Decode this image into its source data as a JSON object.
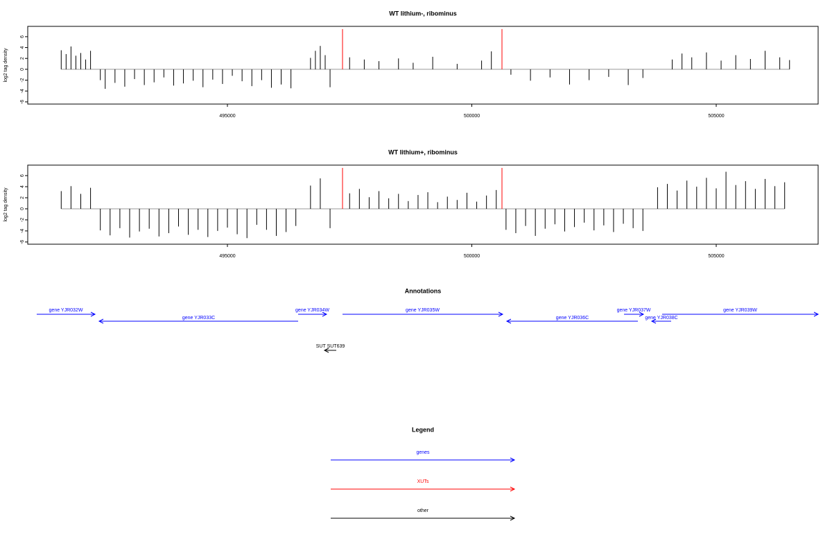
{
  "chart_data": [
    {
      "type": "bar",
      "title": "WT lithium-, ribominus",
      "y_label": "log2 tag density",
      "xlim": [
        490915,
        507085
      ],
      "ylim": [
        -6.4,
        7.9
      ],
      "xticks": [
        495000,
        500000,
        505000
      ],
      "yticks": [
        -6,
        -4,
        -2,
        0,
        2,
        4,
        6
      ],
      "color": "#000000",
      "x": [
        491600,
        491700,
        491800,
        491900,
        492000,
        492100,
        492200,
        492400,
        492500,
        492700,
        492900,
        493100,
        493300,
        493500,
        493700,
        493900,
        494100,
        494300,
        494500,
        494700,
        494900,
        495100,
        495300,
        495500,
        495700,
        495900,
        496100,
        496300,
        496700,
        496800,
        496900,
        497000,
        497100,
        497500,
        497800,
        498100,
        498500,
        498800,
        499200,
        499700,
        500200,
        500400,
        500800,
        501200,
        501600,
        502000,
        502400,
        502800,
        503200,
        503500,
        504100,
        504300,
        504500,
        504800,
        505100,
        505400,
        505700,
        506000,
        506300,
        506500
      ],
      "values": [
        3.5,
        2.8,
        4.2,
        2.5,
        3.0,
        1.8,
        3.4,
        -2.0,
        -3.6,
        -2.5,
        -3.2,
        -1.8,
        -2.9,
        -2.4,
        -1.5,
        -3.0,
        -2.6,
        -2.1,
        -3.3,
        -1.9,
        -2.7,
        -1.2,
        -2.2,
        -3.1,
        -2.0,
        -3.4,
        -2.8,
        -3.5,
        2.1,
        3.4,
        4.3,
        2.6,
        -3.3,
        2.2,
        1.8,
        1.5,
        2.0,
        1.2,
        2.3,
        1.0,
        1.6,
        3.3,
        -1.0,
        -2.1,
        -1.5,
        -2.8,
        -2.0,
        -1.4,
        -2.9,
        -1.6,
        1.8,
        2.9,
        2.2,
        3.1,
        1.6,
        2.6,
        1.9,
        3.4,
        2.2,
        1.7
      ],
      "highlights": {
        "x": [
          497355,
          500617
        ],
        "values": [
          7.4,
          7.4
        ],
        "color": "#ff0000"
      }
    },
    {
      "type": "bar",
      "title": "WT lithium+, ribominus",
      "y_label": "log2 tag density",
      "xlim": [
        490915,
        507085
      ],
      "ylim": [
        -6.4,
        7.9
      ],
      "xticks": [
        495000,
        500000,
        505000
      ],
      "yticks": [
        -6,
        -4,
        -2,
        0,
        2,
        4,
        6
      ],
      "color": "#000000",
      "x": [
        491600,
        491800,
        492000,
        492200,
        492400,
        492600,
        492800,
        493000,
        493200,
        493400,
        493600,
        493800,
        494000,
        494200,
        494400,
        494600,
        494800,
        495000,
        495200,
        495400,
        495600,
        495800,
        496000,
        496200,
        496400,
        496700,
        496900,
        497100,
        497500,
        497700,
        497900,
        498100,
        498300,
        498500,
        498700,
        498900,
        499100,
        499300,
        499500,
        499700,
        499900,
        500100,
        500300,
        500500,
        500700,
        500900,
        501100,
        501300,
        501500,
        501700,
        501900,
        502100,
        502300,
        502500,
        502700,
        502900,
        503100,
        503300,
        503500,
        503800,
        504000,
        504200,
        504400,
        504600,
        504800,
        505000,
        505200,
        505400,
        505600,
        505800,
        506000,
        506200,
        506400
      ],
      "values": [
        3.2,
        4.1,
        2.7,
        3.8,
        -3.9,
        -4.8,
        -3.5,
        -5.2,
        -4.1,
        -3.6,
        -5.0,
        -4.4,
        -3.2,
        -4.7,
        -3.8,
        -5.1,
        -4.0,
        -3.4,
        -4.6,
        -5.3,
        -2.9,
        -3.8,
        -4.9,
        -4.2,
        -3.1,
        4.2,
        5.5,
        -3.5,
        2.8,
        3.6,
        2.1,
        3.2,
        1.9,
        2.7,
        1.4,
        2.5,
        3.0,
        1.2,
        2.2,
        1.6,
        2.9,
        1.3,
        2.4,
        3.4,
        -3.8,
        -4.4,
        -3.1,
        -4.9,
        -3.6,
        -2.8,
        -4.1,
        -3.3,
        -2.5,
        -3.9,
        -3.0,
        -4.2,
        -2.7,
        -3.5,
        -4.0,
        3.9,
        4.5,
        3.3,
        5.1,
        4.0,
        5.6,
        3.7,
        6.7,
        4.3,
        5.0,
        3.6,
        5.4,
        4.1,
        4.8
      ],
      "highlights": {
        "x": [
          497355,
          500617
        ],
        "values": [
          7.4,
          7.4
        ],
        "color": "#ff0000"
      }
    }
  ],
  "annotations": {
    "title": "Annotations",
    "features": [
      {
        "label": "gene YJR032W",
        "start": 491099,
        "end": 492291,
        "strand": "+",
        "color": "#0000ff"
      },
      {
        "label": "gene YJR033C",
        "start": 492376,
        "end": 496447,
        "strand": "-",
        "color": "#0000ff"
      },
      {
        "label": "gene YJR034W",
        "start": 496447,
        "end": 497028,
        "strand": "+",
        "color": "#0000ff"
      },
      {
        "label": "gene YJR035W",
        "start": 497355,
        "end": 500631,
        "strand": "+",
        "color": "#0000ff"
      },
      {
        "label": "gene YJR036C",
        "start": 500716,
        "end": 503397,
        "strand": "-",
        "color": "#0000ff"
      },
      {
        "label": "gene YJR037W",
        "start": 503114,
        "end": 503511,
        "strand": "+",
        "color": "#0000ff"
      },
      {
        "label": "gene YJR038C",
        "start": 503681,
        "end": 504078,
        "strand": "-",
        "color": "#0000ff"
      },
      {
        "label": "gene YJR039W",
        "start": 503894,
        "end": 507085,
        "strand": "+",
        "color": "#0000ff"
      },
      {
        "label": "SUT SUT639",
        "start": 496986,
        "end": 497227,
        "strand": "-",
        "color": "#000000"
      }
    ]
  },
  "legend": {
    "title": "Legend",
    "items": [
      {
        "label": "genes",
        "color": "#0000ff"
      },
      {
        "label": "XUTs",
        "color": "#ff0000"
      },
      {
        "label": "other",
        "color": "#000000"
      }
    ]
  }
}
